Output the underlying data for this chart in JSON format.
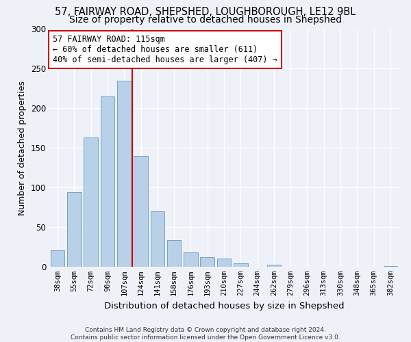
{
  "title1": "57, FAIRWAY ROAD, SHEPSHED, LOUGHBOROUGH, LE12 9BL",
  "title2": "Size of property relative to detached houses in Shepshed",
  "xlabel": "Distribution of detached houses by size in Shepshed",
  "ylabel": "Number of detached properties",
  "categories": [
    "38sqm",
    "55sqm",
    "72sqm",
    "90sqm",
    "107sqm",
    "124sqm",
    "141sqm",
    "158sqm",
    "176sqm",
    "193sqm",
    "210sqm",
    "227sqm",
    "244sqm",
    "262sqm",
    "279sqm",
    "296sqm",
    "313sqm",
    "330sqm",
    "348sqm",
    "365sqm",
    "382sqm"
  ],
  "values": [
    21,
    94,
    163,
    215,
    235,
    140,
    70,
    34,
    18,
    12,
    10,
    4,
    0,
    3,
    0,
    0,
    0,
    0,
    0,
    0,
    1
  ],
  "bar_color": "#b8d0e8",
  "bar_edge_color": "#6699bb",
  "vline_x": 4.5,
  "vline_color": "#cc0000",
  "annotation_title": "57 FAIRWAY ROAD: 115sqm",
  "annotation_line1": "← 60% of detached houses are smaller (611)",
  "annotation_line2": "40% of semi-detached houses are larger (407) →",
  "annotation_box_color": "#ffffff",
  "annotation_box_edge": "#cc0000",
  "ylim": [
    0,
    300
  ],
  "yticks": [
    0,
    50,
    100,
    150,
    200,
    250,
    300
  ],
  "footer": "Contains HM Land Registry data © Crown copyright and database right 2024.\nContains public sector information licensed under the Open Government Licence v3.0.",
  "bg_color": "#eef2f8",
  "title1_fontsize": 10.5,
  "title2_fontsize": 10
}
